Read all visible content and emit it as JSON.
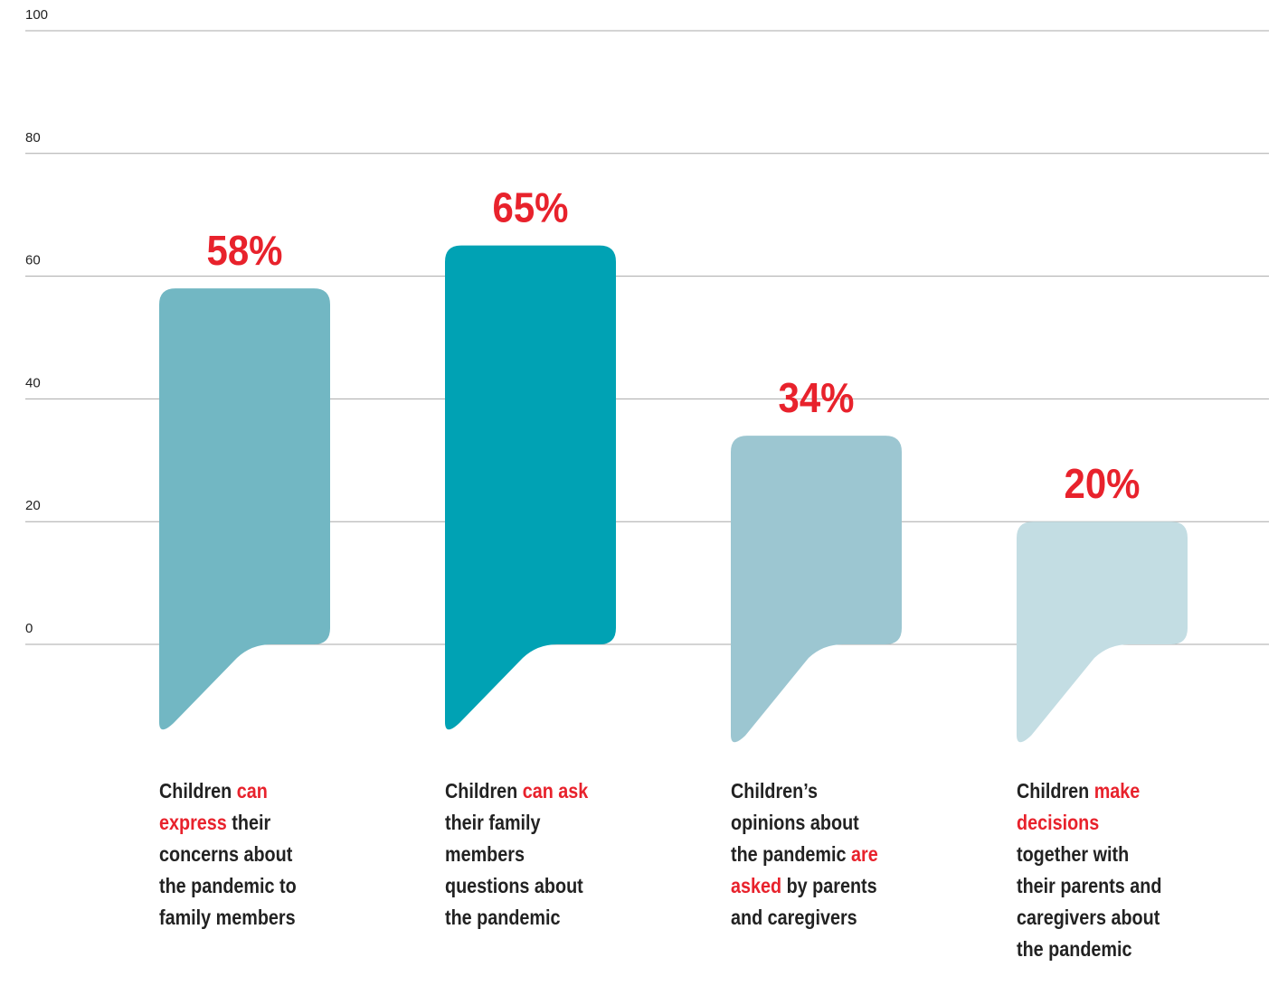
{
  "chart_data": {
    "type": "bar",
    "ylim": [
      0,
      100
    ],
    "yticks": [
      0,
      20,
      40,
      60,
      80,
      100
    ],
    "grid": true,
    "value_format": "percent",
    "colors": [
      "#72b7c3",
      "#00a2b4",
      "#9cc6d1",
      "#c3dde3"
    ],
    "highlight_color": "#e8222c",
    "categories": [
      [
        {
          "text": "Children ",
          "highlight": false
        },
        {
          "text": "can express",
          "highlight": true
        },
        {
          "text": " their concerns about the pandemic to family members",
          "highlight": false
        }
      ],
      [
        {
          "text": "Children ",
          "highlight": false
        },
        {
          "text": "can ask",
          "highlight": true
        },
        {
          "text": " their family members questions about the pandemic",
          "highlight": false
        }
      ],
      [
        {
          "text": "Children’s opinions about the pandemic ",
          "highlight": false
        },
        {
          "text": "are asked",
          "highlight": true
        },
        {
          "text": " by parents and caregivers",
          "highlight": false
        }
      ],
      [
        {
          "text": "Children ",
          "highlight": false
        },
        {
          "text": "make decisions",
          "highlight": true
        },
        {
          "text": " together with their parents and caregivers about the pandemic",
          "highlight": false
        }
      ]
    ],
    "values": [
      58,
      65,
      34,
      20
    ]
  }
}
